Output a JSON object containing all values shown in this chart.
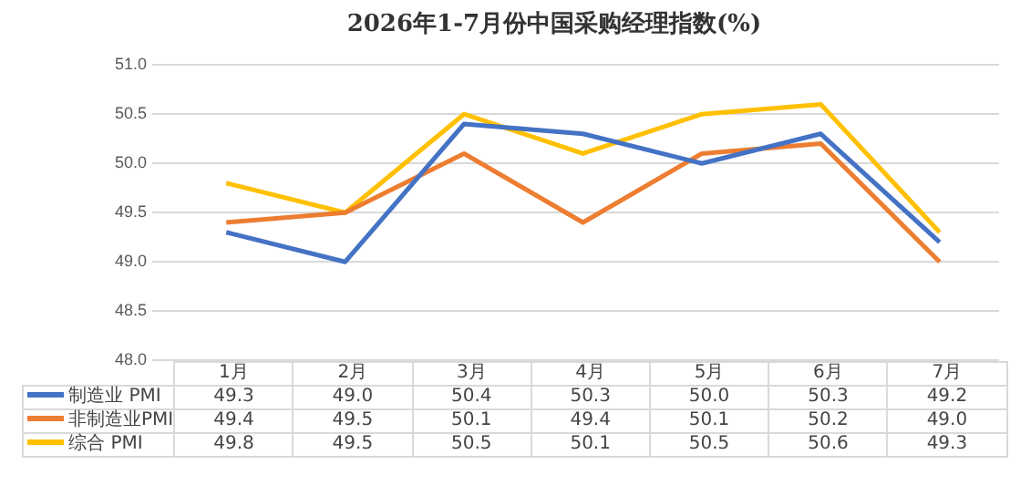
{
  "chart_data": {
    "type": "line",
    "title": "2026年1-7月份中国采购经理指数(%)",
    "categories": [
      "1月",
      "2月",
      "3月",
      "4月",
      "5月",
      "6月",
      "7月"
    ],
    "series": [
      {
        "name": "制造业 PMI",
        "color": "#4472c4",
        "values": [
          49.3,
          49.0,
          50.4,
          50.3,
          50.0,
          50.3,
          49.2
        ],
        "value_labels": [
          "49.3",
          "49.0",
          "50.4",
          "50.3",
          "50.0",
          "50.3",
          "49.2"
        ]
      },
      {
        "name": "非制造业PMI",
        "color": "#ed7d31",
        "values": [
          49.4,
          49.5,
          50.1,
          49.4,
          50.1,
          50.2,
          49.0
        ],
        "value_labels": [
          "49.4",
          "49.5",
          "50.1",
          "49.4",
          "50.1",
          "50.2",
          "49.0"
        ]
      },
      {
        "name": "综合 PMI",
        "color": "#ffc000",
        "values": [
          49.8,
          49.5,
          50.5,
          50.1,
          50.5,
          50.6,
          49.3
        ],
        "value_labels": [
          "49.8",
          "49.5",
          "50.5",
          "50.1",
          "50.5",
          "50.6",
          "49.3"
        ]
      }
    ],
    "ylim": [
      48.0,
      51.0
    ],
    "yticks": [
      {
        "value": 48,
        "label": "48.0"
      },
      {
        "value": 48.5,
        "label": "48.5"
      },
      {
        "value": 49,
        "label": "49.0"
      },
      {
        "value": 49.5,
        "label": "49.5"
      },
      {
        "value": 50,
        "label": "50.0"
      },
      {
        "value": 50.5,
        "label": "50.5"
      },
      {
        "value": 51,
        "label": "51.0"
      }
    ],
    "grid": "y",
    "legend": "bottom",
    "marker": "none",
    "line_style": "solid"
  }
}
